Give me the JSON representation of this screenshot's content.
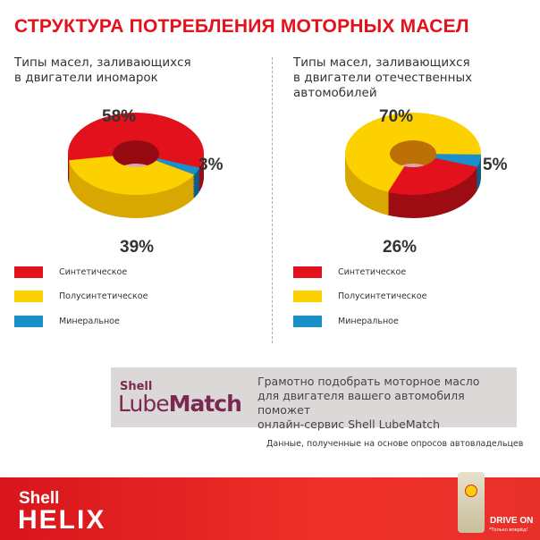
{
  "title": "СТРУКТУРА ПОТРЕБЛЕНИЯ МОТОРНЫХ МАСЕЛ",
  "chart_data": [
    {
      "type": "pie",
      "subtitle": "Типы масел, заливающихся в двигатели иномарок",
      "categories": [
        "Синтетическое",
        "Полусинтетическое",
        "Минеральное"
      ],
      "values": [
        58,
        39,
        3
      ],
      "labels": [
        "58%",
        "39%",
        "3%"
      ],
      "colors": [
        "#e3111b",
        "#fdd000",
        "#1b8fca"
      ],
      "style": "3d-donut",
      "legend": "bottom-left"
    },
    {
      "type": "pie",
      "subtitle": "Типы масел, заливающихся в двигатели отечественных автомобилей",
      "categories": [
        "Синтетическое",
        "Полусинтетическое",
        "Минеральное"
      ],
      "values": [
        26,
        70,
        5
      ],
      "labels": [
        "26%",
        "70%",
        "5%"
      ],
      "colors": [
        "#e3111b",
        "#fdd000",
        "#1b8fca"
      ],
      "style": "3d-donut",
      "legend": "bottom-left"
    }
  ],
  "left": {
    "subtitle_1": "Типы масел, заливающихся",
    "subtitle_2": "в двигатели иномарок"
  },
  "right": {
    "subtitle_1": "Типы масел, заливающихся",
    "subtitle_2": "в двигатели отечественных",
    "subtitle_3": "автомобилей"
  },
  "legend": [
    "Синтетическое",
    "Полусинтетическое",
    "Минеральное"
  ],
  "lube": {
    "shell": "Shell",
    "lube": "Lube",
    "match": "Match",
    "text_1": "Грамотно подобрать моторное масло",
    "text_2": "для двигателя вашего автомобиля поможет",
    "text_3": "онлайн-сервис Shell LubeMatch"
  },
  "note": "Данные, полученные на основе опросов автовладельцев",
  "footer": {
    "shell": "Shell",
    "helix": "HELIX",
    "drive": "DRIVE ON",
    "drive_sub": "*Только вперёд!"
  }
}
